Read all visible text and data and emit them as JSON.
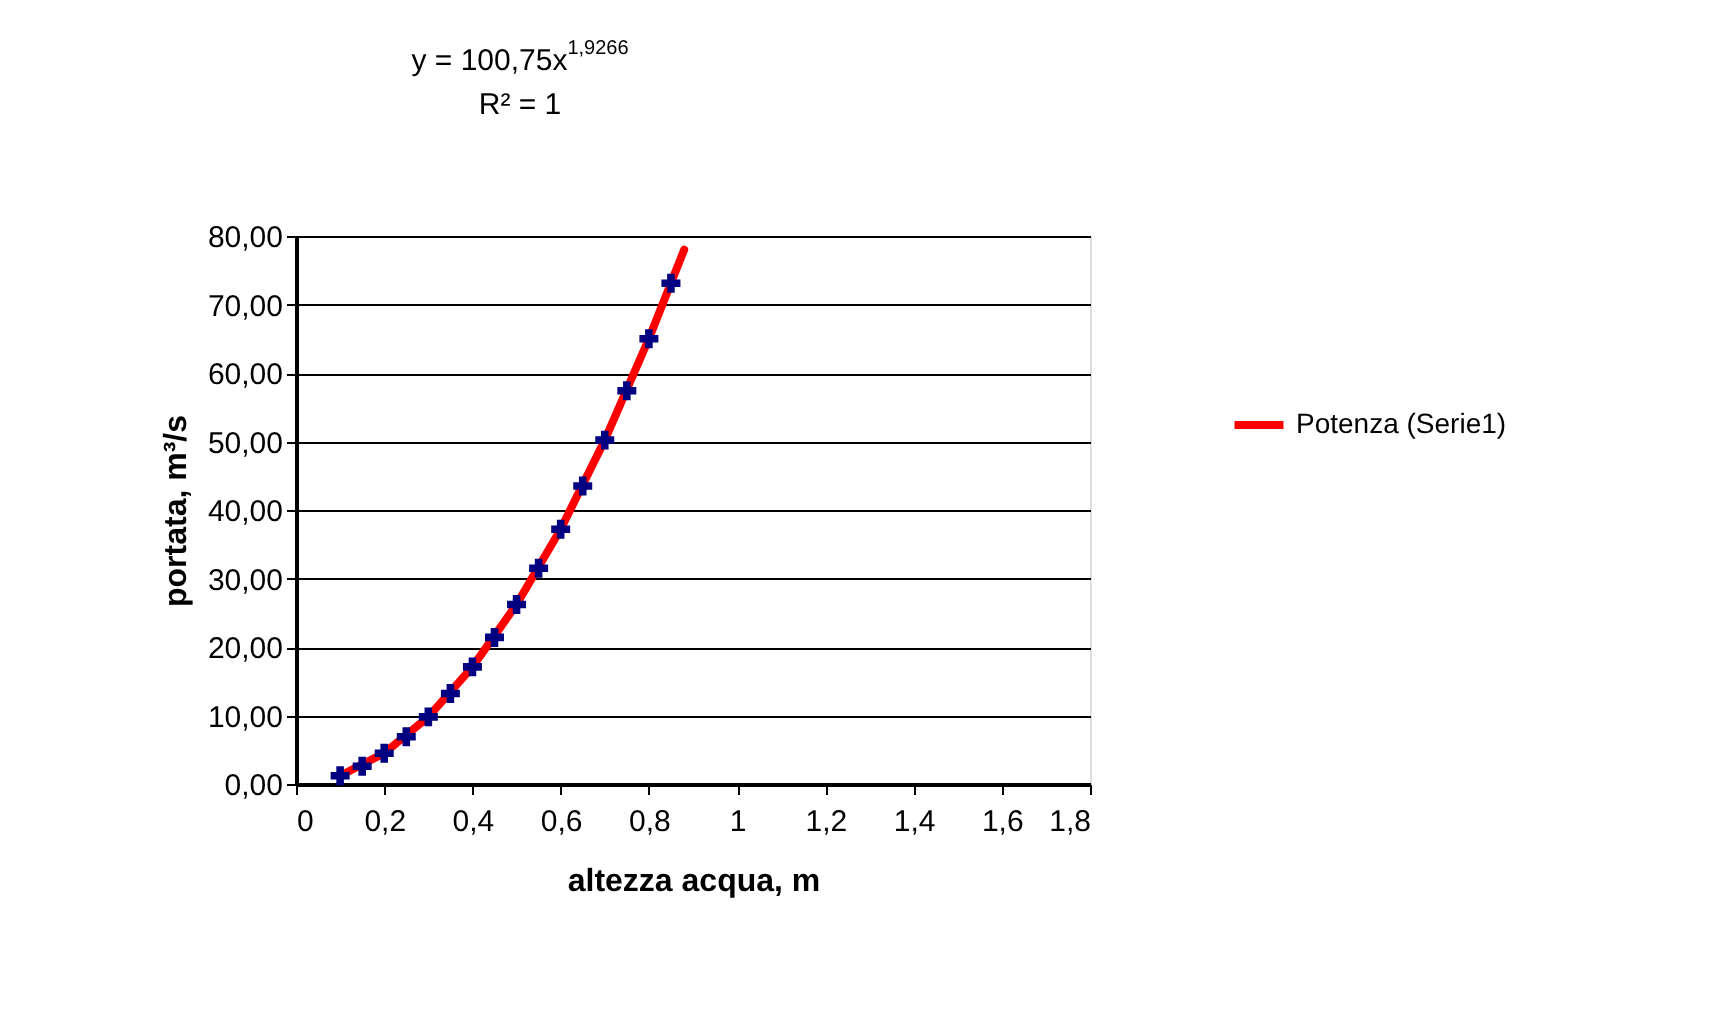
{
  "chart_data": {
    "type": "scatter",
    "xlabel": "altezza acqua, m",
    "ylabel": "portata, m³/s",
    "annotations": [
      "y = 100,75x$^{1,9266}$",
      "R² = 1"
    ],
    "series": [
      {
        "type": "scatter",
        "color": "#000080",
        "marker": "cross",
        "x": [
          0.1,
          0.15,
          0.2,
          0.25,
          0.3,
          0.35,
          0.4,
          0.45,
          0.5,
          0.55,
          0.6,
          0.65,
          0.7,
          0.75,
          0.8,
          0.85
        ],
        "values": [
          1.2,
          2.6,
          4.5,
          6.9,
          9.8,
          13.2,
          17.1,
          21.4,
          26.2,
          31.5,
          37.2,
          43.5,
          50.2,
          57.4,
          65.0,
          73.1
        ]
      },
      {
        "type": "line",
        "name": "Potenza (Serie1)",
        "color": "#ff0000",
        "line_style": "solid",
        "x": [
          0.1,
          0.2,
          0.3,
          0.4,
          0.5,
          0.6,
          0.7,
          0.8,
          0.88
        ],
        "values": [
          1.2,
          4.5,
          9.8,
          17.1,
          26.2,
          37.2,
          50.2,
          65.0,
          78.0
        ]
      }
    ],
    "xlim": [
      0,
      1.8
    ],
    "ylim": [
      0,
      80
    ],
    "xticks": [
      0,
      {
        "value": 0.2,
        "label": "0,2"
      },
      {
        "value": 0.4,
        "label": "0,4"
      },
      {
        "value": 0.6,
        "label": "0,6"
      },
      {
        "value": 0.8,
        "label": "0,8"
      },
      1,
      {
        "value": 1.2,
        "label": "1,2"
      },
      {
        "value": 1.4,
        "label": "1,4"
      },
      {
        "value": 1.6,
        "label": "1,6"
      },
      {
        "value": 1.8,
        "label": "1,8"
      }
    ],
    "yticks": [
      {
        "value": 0,
        "label": "0,00"
      },
      {
        "value": 10,
        "label": "10,00"
      },
      {
        "value": 20,
        "label": "20,00"
      },
      {
        "value": 30,
        "label": "30,00"
      },
      {
        "value": 40,
        "label": "40,00"
      },
      {
        "value": 50,
        "label": "50,00"
      },
      {
        "value": 60,
        "label": "60,00"
      },
      {
        "value": 70,
        "label": "70,00"
      },
      {
        "value": 80,
        "label": "80,00"
      }
    ],
    "grid": "y",
    "legend": "right"
  }
}
